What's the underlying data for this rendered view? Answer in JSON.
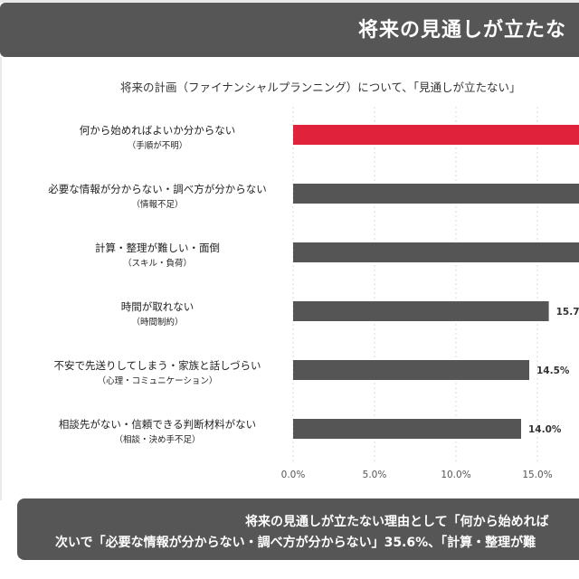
{
  "header": {
    "title": "将来の見通しが立たな"
  },
  "subtitle": "将来の計画（ファイナンシャルプランニング）について、「見通しが立たない」",
  "chart_data": {
    "type": "bar",
    "orientation": "horizontal",
    "categories": [
      {
        "label": "何から始めればよいか分からない",
        "sublabel": "（手順が不明）"
      },
      {
        "label": "必要な情報が分からない・調べ方が分からない",
        "sublabel": "（情報不足）"
      },
      {
        "label": "計算・整理が難しい・面倒",
        "sublabel": "（スキル・負荷）"
      },
      {
        "label": "時間が取れない",
        "sublabel": "（時間制約）"
      },
      {
        "label": "不安で先送りしてしまう・家族と話しづらい",
        "sublabel": "（心理・コミュニケーション）"
      },
      {
        "label": "相談先がない・信頼できる判断材料がない",
        "sublabel": "（相談・決め手不足）"
      }
    ],
    "values": [
      null,
      35.6,
      null,
      15.7,
      14.5,
      14.0
    ],
    "value_labels": [
      "",
      "",
      "",
      "15.7",
      "14.5%",
      "14.0%"
    ],
    "highlight_index": 0,
    "x_ticks": [
      "0.0%",
      "5.0%",
      "10.0%",
      "15.0%"
    ],
    "x_tick_values": [
      0,
      5,
      10,
      15
    ],
    "colors": {
      "highlight": "#e0223a",
      "bar": "#555555",
      "grid": "#d8d8d8"
    }
  },
  "summary": {
    "line1": "将来の見通しが立たない理由として「何から始めれば",
    "line2": "次いで「必要な情報が分からない・調べ方が分からない」35.6%、「計算・整理が難"
  }
}
